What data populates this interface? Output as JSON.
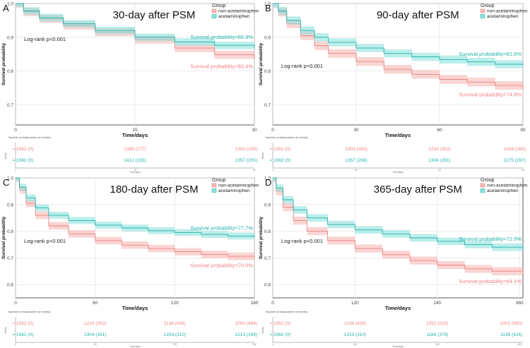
{
  "colors": {
    "non": "#f08080",
    "non_fill": "#f7b9b5",
    "acet": "#20b2aa",
    "acet_fill": "#8fe3de",
    "axis": "#333333",
    "grid": "#e3e3e3"
  },
  "chart_data": [
    {
      "type": "line",
      "panel_letter": "A",
      "title": "30-day after PSM",
      "xlabel": "Time/days",
      "ylabel": "Survival probability",
      "xlim": [
        0,
        30
      ],
      "ylim": [
        0.64,
        1.0
      ],
      "xticks": [
        0,
        15,
        30
      ],
      "yticks": [
        0.7,
        0.8,
        0.9,
        1.0
      ],
      "ytick_labels": [
        "0.7",
        "0.8",
        "0.9",
        "1.0"
      ],
      "legend_title": "Group",
      "legend": [
        "non-acetaminophen",
        "acetaminophen"
      ],
      "logrank": "Log-rank p<0.001",
      "series": [
        {
          "name": "non-acetaminophen",
          "x": [
            0,
            1,
            3,
            6,
            10,
            15,
            20,
            25,
            30
          ],
          "values": [
            1.0,
            0.975,
            0.955,
            0.935,
            0.915,
            0.893,
            0.868,
            0.848,
            0.834
          ],
          "ci": 0.012
        },
        {
          "name": "acetaminophen",
          "x": [
            0,
            1,
            3,
            6,
            10,
            15,
            20,
            25,
            30
          ],
          "values": [
            1.0,
            0.978,
            0.958,
            0.94,
            0.92,
            0.9,
            0.886,
            0.876,
            0.869
          ],
          "ci": 0.011
        }
      ],
      "annotations": [
        {
          "series": 1,
          "text": "Survival probability=86.9%",
          "at_x": 30,
          "at_y": 0.895
        },
        {
          "series": 0,
          "text": "Survival probability=83.4%",
          "at_x": 30,
          "at_y": 0.808
        }
      ],
      "risk_table": {
        "title": "Number at risk(number of events)",
        "ylabel": "Strata",
        "xlabel": "Time/days",
        "rows": [
          {
            "series": 0,
            "values": [
              "1562 (0)",
              "1396 (177)",
              "1303 (259)"
            ]
          },
          {
            "series": 1,
            "values": [
              "1562 (0)",
              "1412 (155)",
              "1357 (205)"
            ]
          }
        ]
      }
    },
    {
      "type": "line",
      "panel_letter": "B",
      "title": "90-day after PSM",
      "xlabel": "Time/days",
      "ylabel": "Survival probability",
      "xlim": [
        0,
        90
      ],
      "ylim": [
        0.64,
        1.0
      ],
      "xticks": [
        0,
        30,
        60,
        90
      ],
      "yticks": [
        0.7,
        0.8,
        0.9,
        1.0
      ],
      "ytick_labels": [
        "0.7",
        "0.8",
        "0.9",
        "1.0"
      ],
      "legend_title": "Group",
      "legend": [
        "non-acetaminophen",
        "acetaminophen"
      ],
      "logrank": "Log-rank p<0.001",
      "series": [
        {
          "name": "non-acetaminophen",
          "x": [
            0,
            2,
            5,
            10,
            15,
            20,
            30,
            40,
            50,
            60,
            70,
            80,
            90
          ],
          "values": [
            1.0,
            0.975,
            0.94,
            0.905,
            0.875,
            0.852,
            0.828,
            0.805,
            0.79,
            0.775,
            0.767,
            0.757,
            0.748
          ],
          "ci": 0.013
        },
        {
          "name": "acetaminophen",
          "x": [
            0,
            2,
            5,
            10,
            15,
            20,
            30,
            40,
            50,
            60,
            70,
            80,
            90
          ],
          "values": [
            1.0,
            0.978,
            0.95,
            0.92,
            0.9,
            0.885,
            0.868,
            0.852,
            0.842,
            0.834,
            0.827,
            0.82,
            0.816
          ],
          "ci": 0.012
        }
      ],
      "annotations": [
        {
          "series": 1,
          "text": "Survival probability=81.6%",
          "at_x": 90,
          "at_y": 0.845
        },
        {
          "series": 0,
          "text": "Survival probability=74.8%",
          "at_x": 90,
          "at_y": 0.725
        }
      ],
      "risk_table": {
        "title": "Number at risk(number of events)",
        "ylabel": "Strata",
        "xlabel": "Time/days",
        "rows": [
          {
            "series": 0,
            "values": [
              "1562 (0)",
              "1303 (263)",
              "1210 (352)",
              "1169 (393)"
            ]
          },
          {
            "series": 1,
            "values": [
              "1562 (0)",
              "1357 (206)",
              "1304 (261)",
              "1275 (287)"
            ]
          }
        ]
      }
    },
    {
      "type": "line",
      "panel_letter": "C",
      "title": "180-day after PSM",
      "xlabel": "Time/days",
      "ylabel": "Survival probability",
      "xlim": [
        0,
        180
      ],
      "ylim": [
        0.55,
        1.0
      ],
      "xticks": [
        0,
        60,
        120,
        180
      ],
      "yticks": [
        0.6,
        0.7,
        0.8,
        0.9,
        1.0
      ],
      "ytick_labels": [
        "0.6",
        "0.7",
        "0.8",
        "0.9",
        "1.0"
      ],
      "legend_title": "Group",
      "legend": [
        "non-acetaminophen",
        "acetaminophen"
      ],
      "logrank": "Log-rank p<0.001",
      "series": [
        {
          "name": "non-acetaminophen",
          "x": [
            0,
            3,
            8,
            15,
            25,
            40,
            60,
            80,
            100,
            120,
            140,
            160,
            180
          ],
          "values": [
            1.0,
            0.955,
            0.905,
            0.86,
            0.82,
            0.79,
            0.765,
            0.748,
            0.735,
            0.723,
            0.713,
            0.706,
            0.7
          ],
          "ci": 0.014
        },
        {
          "name": "acetaminophen",
          "x": [
            0,
            3,
            8,
            15,
            25,
            40,
            60,
            80,
            100,
            120,
            140,
            160,
            180
          ],
          "values": [
            1.0,
            0.965,
            0.925,
            0.888,
            0.86,
            0.84,
            0.823,
            0.812,
            0.802,
            0.795,
            0.788,
            0.782,
            0.777
          ],
          "ci": 0.013
        }
      ],
      "annotations": [
        {
          "series": 1,
          "text": "Survival probability=77.7%",
          "at_x": 180,
          "at_y": 0.805
        },
        {
          "series": 0,
          "text": "Survival probability=70.0%",
          "at_x": 180,
          "at_y": 0.665
        }
      ],
      "risk_table": {
        "title": "Number at risk(number of events)",
        "ylabel": "Strata",
        "xlabel": "Time/days",
        "rows": [
          {
            "series": 0,
            "values": [
              "1562 (0)",
              "1210 (352)",
              "1138 (426)",
              "1093 (469)"
            ]
          },
          {
            "series": 1,
            "values": [
              "1562 (0)",
              "1304 (261)",
              "1253 (310)",
              "1213 (349)"
            ]
          }
        ]
      }
    },
    {
      "type": "line",
      "panel_letter": "D",
      "title": "365-day after PSM",
      "xlabel": "Time/days",
      "ylabel": "Survival probability",
      "xlim": [
        0,
        365
      ],
      "ylim": [
        0.55,
        1.0
      ],
      "xticks": [
        0,
        120,
        240,
        360
      ],
      "yticks": [
        0.6,
        0.7,
        0.8,
        0.9,
        1.0
      ],
      "ytick_labels": [
        "0.6",
        "0.7",
        "0.8",
        "0.9",
        "1.0"
      ],
      "legend_title": "Group",
      "legend": [
        "non-acetaminophen",
        "acetaminophen"
      ],
      "logrank": "Log-rank p<0.001",
      "series": [
        {
          "name": "non-acetaminophen",
          "x": [
            0,
            5,
            15,
            30,
            50,
            80,
            120,
            160,
            200,
            240,
            280,
            320,
            365
          ],
          "values": [
            1.0,
            0.95,
            0.89,
            0.84,
            0.8,
            0.765,
            0.735,
            0.712,
            0.69,
            0.673,
            0.659,
            0.65,
            0.641
          ],
          "ci": 0.015
        },
        {
          "name": "acetaminophen",
          "x": [
            0,
            5,
            15,
            30,
            50,
            80,
            120,
            160,
            200,
            240,
            280,
            320,
            365
          ],
          "values": [
            1.0,
            0.962,
            0.918,
            0.88,
            0.85,
            0.825,
            0.805,
            0.79,
            0.775,
            0.762,
            0.75,
            0.74,
            0.729
          ],
          "ci": 0.014
        }
      ],
      "annotations": [
        {
          "series": 1,
          "text": "Survival probability=72.9%",
          "at_x": 365,
          "at_y": 0.765
        },
        {
          "series": 0,
          "text": "Survival probability=64.1%",
          "at_x": 365,
          "at_y": 0.605
        }
      ],
      "risk_table": {
        "title": "Number at risk(number of events)",
        "ylabel": "Strata",
        "xlabel": "Time/days",
        "rows": [
          {
            "series": 0,
            "values": [
              "1562 (0)",
              "1138 (426)",
              "1052 (510)",
              "1002 (560)"
            ]
          },
          {
            "series": 1,
            "values": [
              "1562 (0)",
              "1253 (310)",
              "1184 (379)",
              "1138 (424)"
            ]
          }
        ]
      }
    }
  ]
}
